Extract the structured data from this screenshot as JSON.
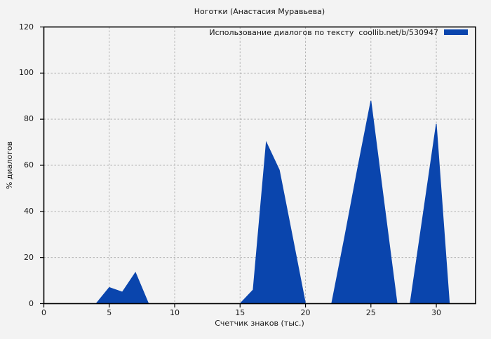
{
  "chart_data": {
    "type": "area",
    "title": "Ноготки (Анастасия Муравьева)",
    "xlabel": "Счетчик знаков (тыс.)",
    "ylabel": "% диалогов",
    "legend_label": "Использование диалогов по тексту  coollib.net/b/530947",
    "legend_position": "upper right",
    "grid": true,
    "xlim": [
      0,
      33
    ],
    "ylim": [
      0,
      120
    ],
    "x_ticks": [
      0,
      5,
      10,
      15,
      20,
      25,
      30
    ],
    "y_ticks": [
      0,
      20,
      40,
      60,
      80,
      100,
      120
    ],
    "x": [
      0,
      1,
      2,
      3,
      4,
      5,
      6,
      7,
      8,
      9,
      10,
      11,
      12,
      13,
      14,
      15,
      16,
      17,
      18,
      19,
      20,
      21,
      22,
      23,
      24,
      25,
      26,
      27,
      28,
      29,
      30,
      31
    ],
    "y": [
      0,
      0,
      0,
      0,
      0,
      7,
      5,
      13.5,
      0,
      0,
      0,
      0,
      0,
      0,
      0,
      0,
      6,
      70,
      58,
      29,
      0,
      0,
      0,
      29,
      59,
      88,
      44,
      0,
      0,
      39,
      78,
      0
    ],
    "colors": {
      "fill": "#0A45AD",
      "background": "#f3f3f3",
      "grid": "#b3b3b3",
      "axis": "#000000"
    }
  }
}
